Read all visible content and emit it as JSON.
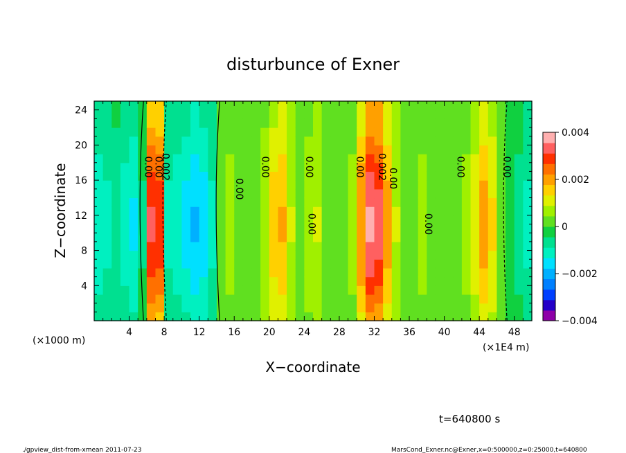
{
  "chart_data": {
    "type": "heatmap",
    "title": "disturbunce of Exner",
    "xlabel": "X−coordinate",
    "ylabel": "Z−coordinate",
    "x_unit_left": "(×1000 m)",
    "x_unit_right": "(×1E4 m)",
    "xlim": [
      0,
      50
    ],
    "ylim": [
      0,
      25
    ],
    "x_ticks": [
      4,
      8,
      12,
      16,
      20,
      24,
      28,
      32,
      36,
      40,
      44,
      48
    ],
    "y_ticks": [
      4,
      8,
      12,
      16,
      20,
      24
    ],
    "colorbar": {
      "range": [
        -0.004,
        0.004
      ],
      "tick_values": [
        0.004,
        0.002,
        0,
        -0.002,
        -0.004
      ],
      "tick_labels": [
        "0.004",
        "0.002",
        "0",
        "−0.002",
        "−0.004"
      ],
      "colors": [
        "#8e00a8",
        "#2400c8",
        "#0040ff",
        "#0080ff",
        "#00b0ff",
        "#00e0ff",
        "#00f0c0",
        "#00e090",
        "#10d040",
        "#60e020",
        "#a0f000",
        "#e0f000",
        "#ffd000",
        "#ffa000",
        "#ff7000",
        "#ff3000",
        "#ff6060",
        "#ffb0b0"
      ]
    },
    "columns": [
      {
        "x": 0.5,
        "v": -0.0012
      },
      {
        "x": 1.5,
        "v": -0.001
      },
      {
        "x": 2.5,
        "v": -0.0008
      },
      {
        "x": 3.5,
        "v": -0.0011
      },
      {
        "x": 4.5,
        "v": -0.0014
      },
      {
        "x": 5.5,
        "v": -0.0005
      },
      {
        "x": 6.5,
        "v": 0.0032
      },
      {
        "x": 7.5,
        "v": 0.003
      },
      {
        "x": 8.5,
        "v": -0.001
      },
      {
        "x": 9.5,
        "v": -0.0012
      },
      {
        "x": 10.5,
        "v": -0.0015
      },
      {
        "x": 11.5,
        "v": -0.0018
      },
      {
        "x": 12.5,
        "v": -0.0016
      },
      {
        "x": 13.5,
        "v": -0.001
      },
      {
        "x": 14.5,
        "v": 0.0002
      },
      {
        "x": 15.5,
        "v": 0.0006
      },
      {
        "x": 16.5,
        "v": 0.0004
      },
      {
        "x": 17.5,
        "v": 0.0001
      },
      {
        "x": 18.5,
        "v": 0.0003
      },
      {
        "x": 19.5,
        "v": 0.0008
      },
      {
        "x": 20.5,
        "v": 0.0016
      },
      {
        "x": 21.5,
        "v": 0.0018
      },
      {
        "x": 22.5,
        "v": 0.0009
      },
      {
        "x": 23.5,
        "v": 0.0003
      },
      {
        "x": 24.5,
        "v": 0.0007
      },
      {
        "x": 25.5,
        "v": 0.0009
      },
      {
        "x": 26.5,
        "v": 0.0004
      },
      {
        "x": 27.5,
        "v": 0.0002
      },
      {
        "x": 28.5,
        "v": 0.0001
      },
      {
        "x": 29.5,
        "v": 0.0006
      },
      {
        "x": 30.5,
        "v": 0.0022
      },
      {
        "x": 31.5,
        "v": 0.0036
      },
      {
        "x": 32.5,
        "v": 0.0034
      },
      {
        "x": 33.5,
        "v": 0.002
      },
      {
        "x": 34.5,
        "v": 0.0009
      },
      {
        "x": 35.5,
        "v": 0.0004
      },
      {
        "x": 36.5,
        "v": 0.0002
      },
      {
        "x": 37.5,
        "v": 0.0006
      },
      {
        "x": 38.5,
        "v": 0.0003
      },
      {
        "x": 39.5,
        "v": 0.0001
      },
      {
        "x": 40.5,
        "v": 0.0002
      },
      {
        "x": 41.5,
        "v": 0.0004
      },
      {
        "x": 42.5,
        "v": 0.0006
      },
      {
        "x": 43.5,
        "v": 0.0012
      },
      {
        "x": 44.5,
        "v": 0.002
      },
      {
        "x": 45.5,
        "v": 0.0014
      },
      {
        "x": 46.5,
        "v": 0.0004
      },
      {
        "x": 47.5,
        "v": -0.0002
      },
      {
        "x": 48.5,
        "v": -0.0006
      },
      {
        "x": 49.5,
        "v": -0.001
      }
    ],
    "contour_labels": [
      {
        "text": "0.00",
        "x": 5.8,
        "z": 17.5
      },
      {
        "text": "0.00",
        "x": 7.0,
        "z": 17.5
      },
      {
        "text": "0.002",
        "x": 7.8,
        "z": 17.5
      },
      {
        "text": "0.00",
        "x": 16.2,
        "z": 15.0
      },
      {
        "text": "0.00",
        "x": 19.2,
        "z": 17.5
      },
      {
        "text": "0.00",
        "x": 24.2,
        "z": 17.5
      },
      {
        "text": "0.00",
        "x": 24.5,
        "z": 11.0
      },
      {
        "text": "0.00",
        "x": 30.0,
        "z": 17.5
      },
      {
        "text": "0.002",
        "x": 32.5,
        "z": 17.5
      },
      {
        "text": "0.00",
        "x": 33.8,
        "z": 16.2
      },
      {
        "text": "0.00",
        "x": 37.8,
        "z": 11.0
      },
      {
        "text": "0.00",
        "x": 41.5,
        "z": 17.5
      },
      {
        "text": "0.00",
        "x": 46.8,
        "z": 17.5
      }
    ]
  },
  "footer": {
    "time": "t=640800 s",
    "script": "./gpview_dist-from-xmean 2011-07-23",
    "source": "MarsCond_Exner.nc@Exner,x=0:500000,z=0:25000,t=640800"
  }
}
